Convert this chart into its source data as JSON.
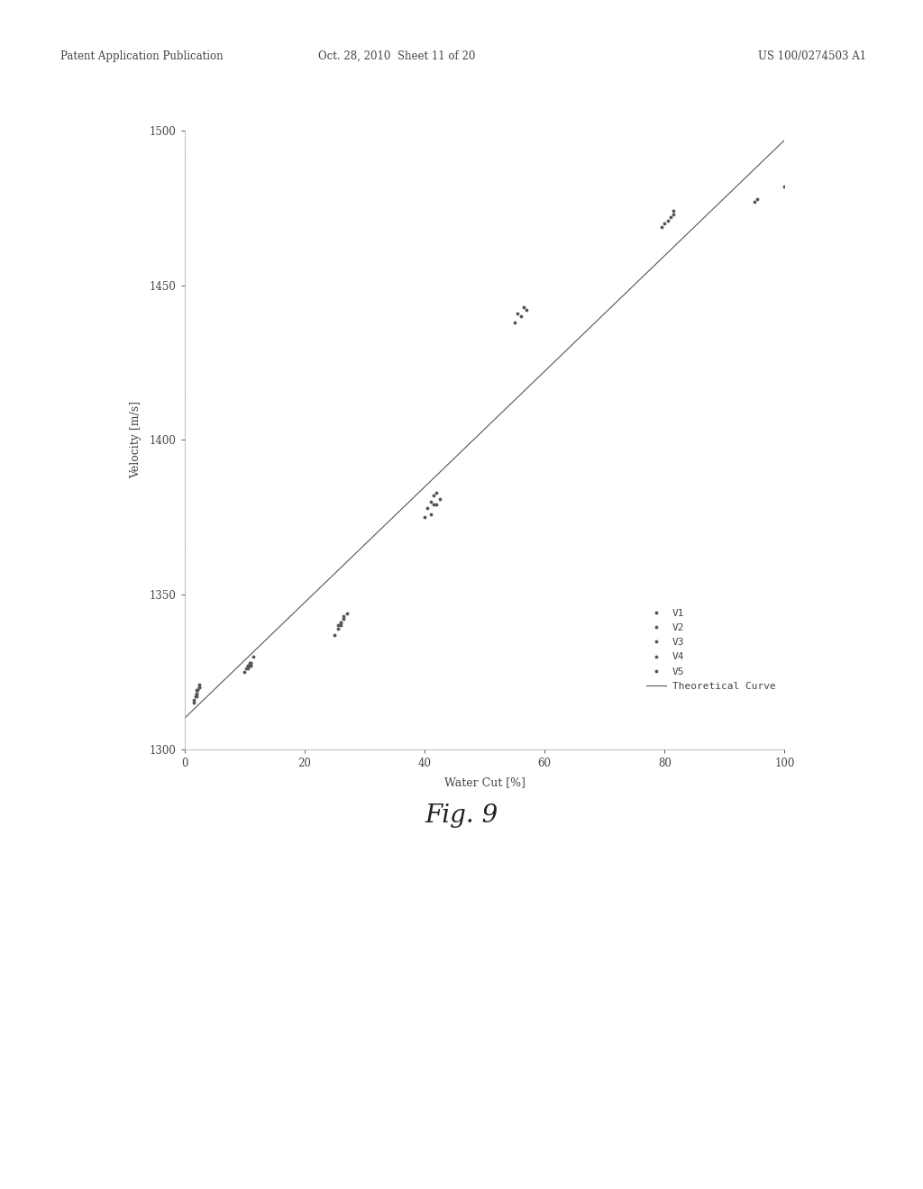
{
  "title_fig": "Fig. 9",
  "xlabel": "Water Cut [%]",
  "ylabel": "Velocity [m/s]",
  "xlim": [
    0,
    100
  ],
  "ylim": [
    1300,
    1500
  ],
  "xticks": [
    0,
    20,
    40,
    60,
    80,
    100
  ],
  "yticks": [
    1300,
    1350,
    1400,
    1450,
    1500
  ],
  "header_left": "Patent Application Publication",
  "header_date": "Oct. 28, 2010  Sheet 11 of 20",
  "header_right": "US 100/0274503 A1",
  "theoretical_curve": {
    "x": [
      0,
      100
    ],
    "y": [
      1310,
      1497
    ]
  },
  "series": {
    "V1": {
      "points": [
        [
          1.5,
          1315
        ],
        [
          2.0,
          1318
        ],
        [
          2.5,
          1320
        ],
        [
          10.0,
          1325
        ],
        [
          10.5,
          1327
        ],
        [
          11.0,
          1328
        ]
      ]
    },
    "V2": {
      "points": [
        [
          1.8,
          1317
        ],
        [
          2.2,
          1319
        ],
        [
          10.2,
          1326
        ],
        [
          10.8,
          1328
        ],
        [
          25.5,
          1340
        ],
        [
          26.0,
          1341
        ]
      ]
    },
    "V3": {
      "points": [
        [
          2.0,
          1318
        ],
        [
          2.5,
          1321
        ],
        [
          11.0,
          1327
        ],
        [
          11.5,
          1330
        ],
        [
          26.0,
          1341
        ],
        [
          26.5,
          1343
        ],
        [
          40.5,
          1378
        ],
        [
          41.0,
          1380
        ],
        [
          41.5,
          1382
        ],
        [
          42.0,
          1383
        ]
      ]
    },
    "V4": {
      "points": [
        [
          1.5,
          1316
        ],
        [
          2.0,
          1317
        ],
        [
          10.5,
          1326
        ],
        [
          11.0,
          1327
        ],
        [
          25.0,
          1337
        ],
        [
          25.5,
          1339
        ],
        [
          26.5,
          1342
        ],
        [
          40.0,
          1375
        ],
        [
          41.5,
          1379
        ],
        [
          42.5,
          1381
        ],
        [
          55.0,
          1438
        ],
        [
          56.0,
          1440
        ],
        [
          57.0,
          1442
        ],
        [
          79.5,
          1469
        ],
        [
          80.5,
          1471
        ],
        [
          81.0,
          1472
        ],
        [
          81.5,
          1474
        ],
        [
          95.0,
          1477
        ],
        [
          100.0,
          1482
        ]
      ]
    },
    "V5": {
      "points": [
        [
          2.0,
          1319
        ],
        [
          2.5,
          1320
        ],
        [
          10.5,
          1327
        ],
        [
          11.0,
          1328
        ],
        [
          26.0,
          1340
        ],
        [
          27.0,
          1344
        ],
        [
          41.0,
          1376
        ],
        [
          42.0,
          1379
        ],
        [
          55.5,
          1441
        ],
        [
          56.5,
          1443
        ],
        [
          80.0,
          1470
        ],
        [
          81.5,
          1473
        ],
        [
          95.5,
          1478
        ]
      ]
    }
  },
  "background_color": "#ffffff",
  "font_color": "#444444",
  "curve_color": "#555555",
  "curve_linestyle": "-",
  "curve_linewidth": 0.8,
  "marker_color": "#555555",
  "marker_size": 3.5
}
